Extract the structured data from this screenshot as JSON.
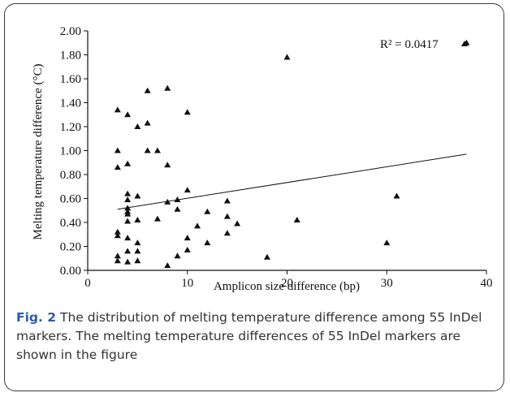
{
  "chart_data": {
    "type": "scatter",
    "xlabel": "Amplicon size difference (bp)",
    "ylabel": "Melting temperature difference (°C)",
    "xlim": [
      0,
      40
    ],
    "ylim": [
      0,
      2
    ],
    "x_ticks": [
      "0",
      "10",
      "20",
      "30",
      "40"
    ],
    "y_ticks": [
      "0.00",
      "0.20",
      "0.40",
      "0.60",
      "0.80",
      "1.00",
      "1.20",
      "1.40",
      "1.60",
      "1.80",
      "2.00"
    ],
    "grid": false,
    "marker": "triangle",
    "annotation": "R² = 0.0417",
    "trendline": {
      "x": [
        3,
        38
      ],
      "y": [
        0.51,
        0.97
      ]
    },
    "points": [
      {
        "x": 3,
        "y": 1.34
      },
      {
        "x": 3,
        "y": 1.0
      },
      {
        "x": 3,
        "y": 0.86
      },
      {
        "x": 3,
        "y": 0.32
      },
      {
        "x": 3,
        "y": 0.29
      },
      {
        "x": 3,
        "y": 0.12
      },
      {
        "x": 3,
        "y": 0.08
      },
      {
        "x": 4,
        "y": 1.3
      },
      {
        "x": 4,
        "y": 0.89
      },
      {
        "x": 4,
        "y": 0.64
      },
      {
        "x": 4,
        "y": 0.59
      },
      {
        "x": 4,
        "y": 0.52
      },
      {
        "x": 4,
        "y": 0.49
      },
      {
        "x": 4,
        "y": 0.47
      },
      {
        "x": 4,
        "y": 0.41
      },
      {
        "x": 4,
        "y": 0.27
      },
      {
        "x": 4,
        "y": 0.16
      },
      {
        "x": 4,
        "y": 0.07
      },
      {
        "x": 5,
        "y": 1.2
      },
      {
        "x": 5,
        "y": 0.62
      },
      {
        "x": 5,
        "y": 0.42
      },
      {
        "x": 5,
        "y": 0.23
      },
      {
        "x": 5,
        "y": 0.16
      },
      {
        "x": 5,
        "y": 0.08
      },
      {
        "x": 6,
        "y": 1.5
      },
      {
        "x": 6,
        "y": 1.23
      },
      {
        "x": 6,
        "y": 1.0
      },
      {
        "x": 7,
        "y": 1.0
      },
      {
        "x": 7,
        "y": 0.43
      },
      {
        "x": 8,
        "y": 1.52
      },
      {
        "x": 8,
        "y": 0.88
      },
      {
        "x": 8,
        "y": 0.57
      },
      {
        "x": 8,
        "y": 0.04
      },
      {
        "x": 9,
        "y": 0.59
      },
      {
        "x": 9,
        "y": 0.51
      },
      {
        "x": 9,
        "y": 0.12
      },
      {
        "x": 10,
        "y": 1.32
      },
      {
        "x": 10,
        "y": 0.67
      },
      {
        "x": 10,
        "y": 0.27
      },
      {
        "x": 10,
        "y": 0.17
      },
      {
        "x": 11,
        "y": 0.37
      },
      {
        "x": 12,
        "y": 0.49
      },
      {
        "x": 12,
        "y": 0.23
      },
      {
        "x": 14,
        "y": 0.58
      },
      {
        "x": 14,
        "y": 0.45
      },
      {
        "x": 14,
        "y": 0.31
      },
      {
        "x": 15,
        "y": 0.39
      },
      {
        "x": 18,
        "y": 0.11
      },
      {
        "x": 20,
        "y": 1.78
      },
      {
        "x": 21,
        "y": 0.42
      },
      {
        "x": 30,
        "y": 0.23
      },
      {
        "x": 31,
        "y": 0.62
      },
      {
        "x": 38,
        "y": 1.9
      }
    ]
  },
  "caption": {
    "label": "Fig. 2",
    "text": " The distribution of melting temperature difference among 55 InDel markers. The melting temperature differences of 55 InDel markers are shown in the figure"
  }
}
